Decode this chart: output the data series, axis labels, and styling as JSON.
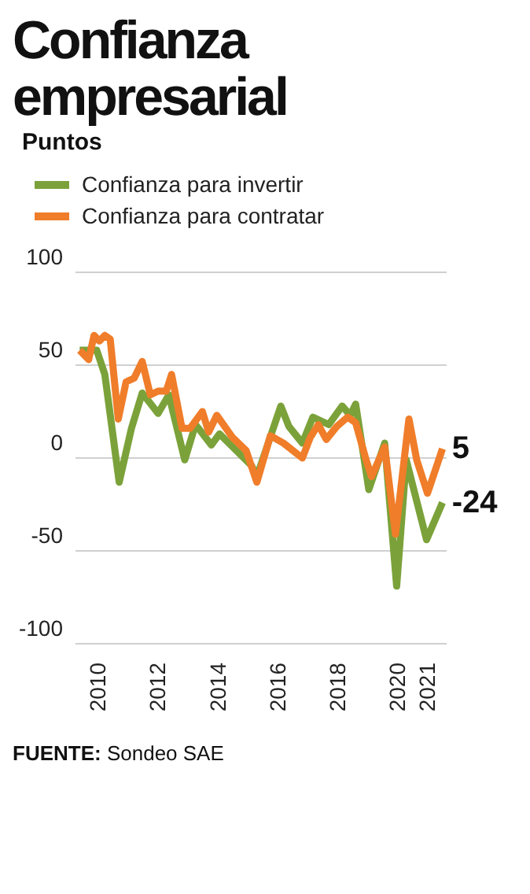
{
  "chart_data": {
    "type": "line",
    "title": "Confianza empresarial",
    "subtitle": "Puntos",
    "annotations": [
      "FUENTE: Sondeo SAE"
    ],
    "series": [
      {
        "name": "Confianza para invertir",
        "color": "#7ba23a",
        "x": [
          2009.34,
          2009.91,
          2010.18,
          2010.66,
          2011.07,
          2011.43,
          2011.96,
          2012.32,
          2012.85,
          2013.21,
          2013.74,
          2014.01,
          2014.45,
          2015.08,
          2015.26,
          2016.06,
          2016.33,
          2016.78,
          2017.13,
          2017.66,
          2018.11,
          2018.38,
          2018.56,
          2019.0,
          2019.53,
          2019.93,
          2020.25,
          2020.93,
          2021.46
        ],
        "values": [
          58,
          58,
          45,
          -13,
          16,
          35,
          24,
          34,
          -1,
          18,
          7,
          13,
          6,
          -4,
          -10,
          28,
          17,
          8,
          22,
          18,
          28,
          23,
          29,
          -17,
          8,
          -69,
          -1,
          -44,
          -24
        ],
        "value_labels": [
          null,
          null,
          null,
          null,
          null,
          null,
          null,
          null,
          null,
          null,
          null,
          null,
          null,
          null,
          null,
          null,
          null,
          null,
          null,
          null,
          null,
          null,
          null,
          null,
          null,
          null,
          null,
          null,
          "-24"
        ]
      },
      {
        "name": "Confianza para contratar",
        "color": "#f07d2a",
        "x": [
          2009.34,
          2009.64,
          2009.82,
          2010.0,
          2010.18,
          2010.36,
          2010.63,
          2010.89,
          2011.16,
          2011.43,
          2011.7,
          2011.96,
          2012.23,
          2012.41,
          2012.76,
          2013.03,
          2013.44,
          2013.65,
          2013.92,
          2014.45,
          2014.9,
          2015.26,
          2015.71,
          2016.15,
          2016.78,
          2017.04,
          2017.31,
          2017.58,
          2017.93,
          2018.29,
          2018.56,
          2018.91,
          2019.09,
          2019.53,
          2019.89,
          2020.34,
          2020.6,
          2020.96,
          2021.46
        ],
        "values": [
          58,
          53,
          66,
          63,
          66,
          64,
          21,
          41,
          43,
          52,
          34,
          36,
          36,
          45,
          16,
          16,
          25,
          14,
          23,
          11,
          4,
          -13,
          12,
          8,
          0,
          11,
          18,
          10,
          17,
          22,
          19,
          -1,
          -10,
          6,
          -41,
          21,
          -1,
          -19,
          5
        ],
        "value_labels": [
          null,
          null,
          null,
          null,
          null,
          null,
          null,
          null,
          null,
          null,
          null,
          null,
          null,
          null,
          null,
          null,
          null,
          null,
          null,
          null,
          null,
          null,
          null,
          null,
          null,
          null,
          null,
          null,
          null,
          null,
          null,
          null,
          null,
          null,
          null,
          null,
          null,
          null,
          "5"
        ]
      }
    ],
    "xlim": [
      2009.2,
      2021.6
    ],
    "xticks": [
      2010,
      2012,
      2014,
      2016,
      2018,
      2020,
      2021
    ],
    "ylim": [
      -100,
      100
    ],
    "yticks": [
      -100,
      -50,
      0,
      50,
      100
    ],
    "grid": "y",
    "legend": "top left",
    "line_style": "solid",
    "marker": "none"
  }
}
